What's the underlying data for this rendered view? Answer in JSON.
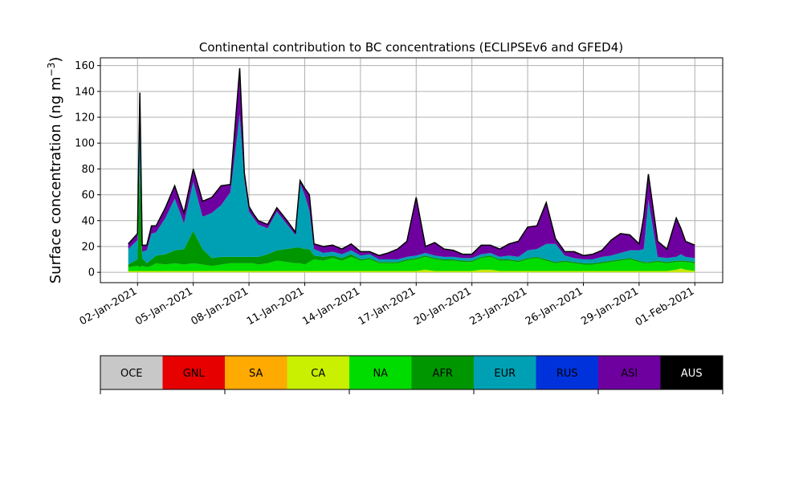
{
  "chart_data": {
    "type": "area",
    "title": "Continental contribution to BC concentrations (ECLIPSEv6 and GFED4)",
    "ylabel_main": "Surface concentration (ng m",
    "ylabel_sup": "−3",
    "ylabel_close": ")",
    "ylim": [
      -8,
      166
    ],
    "xlim": [
      "2020-12-31T00:00",
      "2021-02-02T12:00"
    ],
    "grid": true,
    "y_ticks": [
      0,
      20,
      40,
      60,
      80,
      100,
      120,
      140,
      160
    ],
    "x_ticks": [
      {
        "date": "2021-01-02",
        "label": "02-Jan-2021"
      },
      {
        "date": "2021-01-05",
        "label": "05-Jan-2021"
      },
      {
        "date": "2021-01-08",
        "label": "08-Jan-2021"
      },
      {
        "date": "2021-01-11",
        "label": "11-Jan-2021"
      },
      {
        "date": "2021-01-14",
        "label": "14-Jan-2021"
      },
      {
        "date": "2021-01-17",
        "label": "17-Jan-2021"
      },
      {
        "date": "2021-01-20",
        "label": "20-Jan-2021"
      },
      {
        "date": "2021-01-23",
        "label": "23-Jan-2021"
      },
      {
        "date": "2021-01-26",
        "label": "26-Jan-2021"
      },
      {
        "date": "2021-01-29",
        "label": "29-Jan-2021"
      },
      {
        "date": "2021-02-01",
        "label": "01-Feb-2021"
      }
    ],
    "legend": {
      "placement": "below",
      "items": [
        {
          "label": "OCE",
          "color": "#c8c8c8",
          "text_color": "#000000"
        },
        {
          "label": "GNL",
          "color": "#e60000",
          "text_color": "#000000"
        },
        {
          "label": "SA",
          "color": "#ffaa00",
          "text_color": "#000000"
        },
        {
          "label": "CA",
          "color": "#c8f000",
          "text_color": "#000000"
        },
        {
          "label": "NA",
          "color": "#00dc00",
          "text_color": "#000000"
        },
        {
          "label": "AFR",
          "color": "#009600",
          "text_color": "#000000"
        },
        {
          "label": "EUR",
          "color": "#00a0b4",
          "text_color": "#000000"
        },
        {
          "label": "RUS",
          "color": "#0032dc",
          "text_color": "#000000"
        },
        {
          "label": "ASI",
          "color": "#6e00a0",
          "text_color": "#000000"
        },
        {
          "label": "AUS",
          "color": "#000000",
          "text_color": "#ffffff"
        }
      ]
    },
    "series_order": [
      "CA",
      "NA",
      "AFR",
      "EUR",
      "ASI"
    ],
    "series_colors": {
      "CA": "#c8e600",
      "NA": "#00dc00",
      "AFR": "#009600",
      "EUR": "#00a0b4",
      "ASI": "#6e00a0"
    },
    "total_line_color": "#000000",
    "dates": [
      "2021-01-01T12:00",
      "2021-01-02T00:00",
      "2021-01-02T03:00",
      "2021-01-02T06:00",
      "2021-01-02T12:00",
      "2021-01-02T18:00",
      "2021-01-03T00:00",
      "2021-01-03T12:00",
      "2021-01-04T00:00",
      "2021-01-04T12:00",
      "2021-01-05T00:00",
      "2021-01-05T12:00",
      "2021-01-06T00:00",
      "2021-01-06T12:00",
      "2021-01-07T00:00",
      "2021-01-07T12:00",
      "2021-01-07T18:00",
      "2021-01-08T00:00",
      "2021-01-08T06:00",
      "2021-01-08T12:00",
      "2021-01-09T00:00",
      "2021-01-09T12:00",
      "2021-01-10T00:00",
      "2021-01-10T12:00",
      "2021-01-10T18:00",
      "2021-01-11T00:00",
      "2021-01-11T06:00",
      "2021-01-11T12:00",
      "2021-01-12T00:00",
      "2021-01-12T12:00",
      "2021-01-13T00:00",
      "2021-01-13T12:00",
      "2021-01-14T00:00",
      "2021-01-14T12:00",
      "2021-01-15T00:00",
      "2021-01-15T12:00",
      "2021-01-16T00:00",
      "2021-01-16T12:00",
      "2021-01-17T00:00",
      "2021-01-17T12:00",
      "2021-01-18T00:00",
      "2021-01-18T12:00",
      "2021-01-19T00:00",
      "2021-01-19T12:00",
      "2021-01-20T00:00",
      "2021-01-20T12:00",
      "2021-01-21T00:00",
      "2021-01-21T12:00",
      "2021-01-22T00:00",
      "2021-01-22T12:00",
      "2021-01-23T00:00",
      "2021-01-23T12:00",
      "2021-01-24T00:00",
      "2021-01-24T12:00",
      "2021-01-25T00:00",
      "2021-01-25T12:00",
      "2021-01-26T00:00",
      "2021-01-26T12:00",
      "2021-01-27T00:00",
      "2021-01-27T12:00",
      "2021-01-28T00:00",
      "2021-01-28T12:00",
      "2021-01-29T00:00",
      "2021-01-29T06:00",
      "2021-01-29T12:00",
      "2021-01-30T00:00",
      "2021-01-30T12:00",
      "2021-01-31T00:00",
      "2021-01-31T06:00",
      "2021-01-31T12:00",
      "2021-02-01T00:00"
    ],
    "series": [
      {
        "name": "CA",
        "values": [
          1,
          1,
          1,
          1,
          1,
          1,
          1,
          1,
          1,
          1,
          1,
          1,
          1,
          1,
          1,
          1,
          1,
          1,
          1,
          1,
          1,
          1,
          1,
          1,
          1,
          1,
          1,
          1,
          1,
          1,
          1,
          1,
          1,
          1,
          1,
          1,
          1,
          1,
          1,
          2,
          1,
          1,
          1,
          1,
          1,
          2,
          2,
          1,
          1,
          1,
          1,
          1,
          1,
          1,
          1,
          1,
          1,
          1,
          1,
          1,
          1,
          1,
          1,
          1,
          1,
          1,
          1,
          2,
          3,
          2,
          1
        ]
      },
      {
        "name": "NA",
        "values": [
          3,
          4,
          3,
          4,
          3,
          4,
          6,
          5,
          6,
          5,
          6,
          5,
          4,
          5,
          6,
          6,
          6,
          6,
          6,
          5,
          6,
          8,
          7,
          6,
          6,
          5,
          7,
          9,
          8,
          10,
          8,
          11,
          8,
          9,
          6,
          6,
          6,
          8,
          9,
          10,
          9,
          8,
          8,
          7,
          7,
          9,
          10,
          8,
          8,
          7,
          9,
          10,
          8,
          6,
          7,
          6,
          5,
          5,
          6,
          7,
          8,
          9,
          7,
          6,
          6,
          7,
          6,
          6,
          5,
          6,
          6
        ]
      },
      {
        "name": "AFR",
        "values": [
          2,
          5,
          80,
          6,
          3,
          5,
          6,
          8,
          10,
          12,
          25,
          12,
          6,
          6,
          5,
          5,
          5,
          5,
          5,
          6,
          7,
          8,
          10,
          12,
          12,
          12,
          10,
          3,
          3,
          2,
          2,
          2,
          1,
          1,
          1,
          1,
          1,
          1,
          1,
          1,
          1,
          1,
          1,
          1,
          1,
          1,
          1,
          1,
          1,
          1,
          1,
          1,
          1,
          1,
          1,
          1,
          1,
          1,
          1,
          1,
          1,
          1,
          1,
          1,
          1,
          1,
          1,
          1,
          1,
          1,
          1
        ]
      },
      {
        "name": "EUR",
        "values": [
          12,
          15,
          40,
          5,
          10,
          20,
          18,
          28,
          40,
          20,
          38,
          25,
          35,
          40,
          50,
          110,
          60,
          35,
          30,
          25,
          20,
          30,
          20,
          10,
          50,
          42,
          30,
          5,
          3,
          3,
          3,
          3,
          3,
          3,
          2,
          2,
          2,
          2,
          2,
          2,
          2,
          2,
          2,
          2,
          2,
          2,
          2,
          2,
          3,
          3,
          6,
          6,
          12,
          14,
          4,
          3,
          3,
          3,
          4,
          4,
          5,
          6,
          8,
          10,
          48,
          3,
          3,
          3,
          5,
          3,
          3
        ]
      },
      {
        "name": "ASI",
        "values": [
          4,
          5,
          15,
          5,
          4,
          6,
          5,
          8,
          10,
          8,
          10,
          12,
          12,
          15,
          6,
          36,
          5,
          4,
          3,
          3,
          3,
          3,
          3,
          2,
          2,
          5,
          12,
          4,
          5,
          5,
          4,
          5,
          3,
          2,
          3,
          5,
          8,
          12,
          45,
          5,
          10,
          6,
          5,
          3,
          3,
          7,
          6,
          6,
          9,
          12,
          18,
          18,
          32,
          4,
          3,
          5,
          3,
          4,
          5,
          12,
          15,
          12,
          5,
          25,
          20,
          12,
          7,
          30,
          20,
          12,
          10
        ]
      }
    ]
  }
}
